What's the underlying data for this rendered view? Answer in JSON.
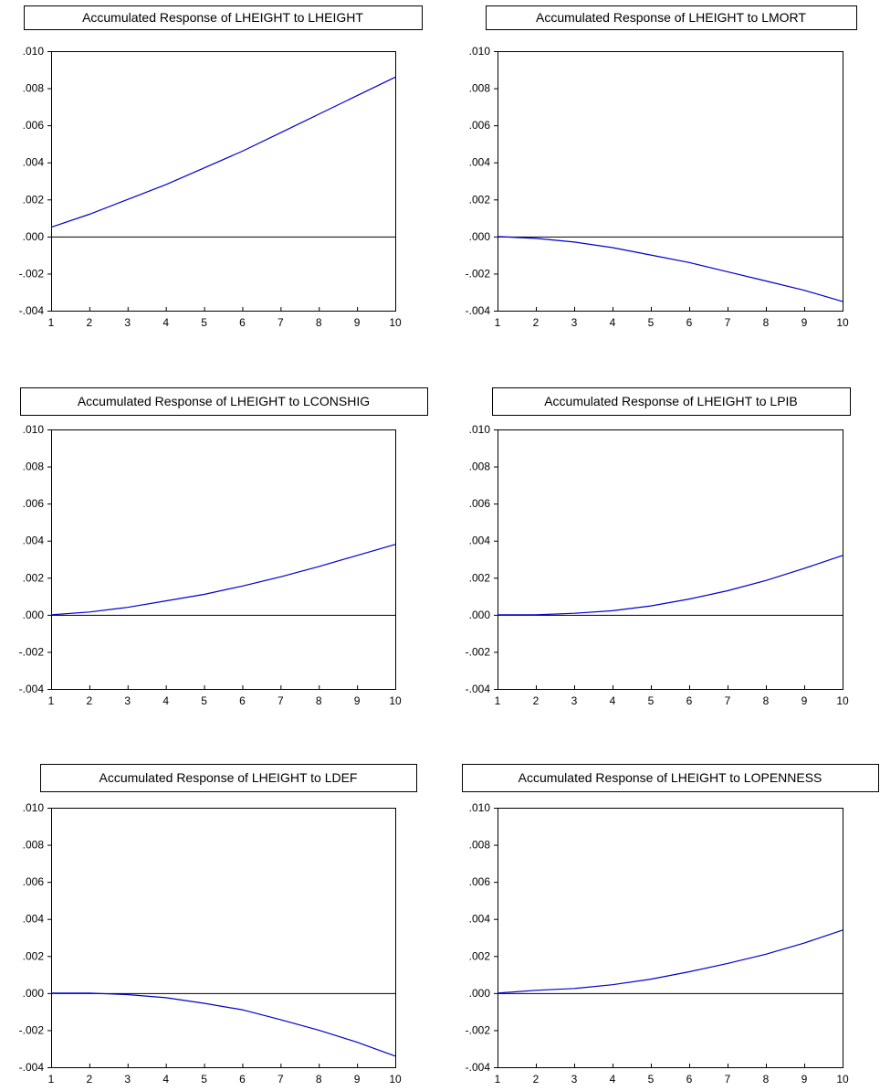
{
  "chart_data": [
    {
      "type": "line",
      "title": "Accumulated Response of LHEIGHT to LHEIGHT",
      "x": [
        1,
        2,
        3,
        4,
        5,
        6,
        7,
        8,
        9,
        10
      ],
      "series": [
        {
          "values": [
            0.0005,
            0.0012,
            0.002,
            0.0028,
            0.0037,
            0.0046,
            0.0056,
            0.0066,
            0.0076,
            0.0086
          ]
        }
      ],
      "xlim": [
        1,
        10
      ],
      "ylim": [
        -0.004,
        0.01
      ],
      "yticks": [
        ".010",
        ".008",
        ".006",
        ".004",
        ".002",
        ".000",
        "-.002",
        "-.004"
      ],
      "xticks": [
        "1",
        "2",
        "3",
        "4",
        "5",
        "6",
        "7",
        "8",
        "9",
        "10"
      ],
      "zero_line": true,
      "grid": false,
      "series_color": "#0000CC"
    },
    {
      "type": "line",
      "title": "Accumulated Response of LHEIGHT to LMORT",
      "x": [
        1,
        2,
        3,
        4,
        5,
        6,
        7,
        8,
        9,
        10
      ],
      "series": [
        {
          "values": [
            0.0,
            -0.0001,
            -0.0003,
            -0.0006,
            -0.001,
            -0.0014,
            -0.0019,
            -0.0024,
            -0.0029,
            -0.0035
          ]
        }
      ],
      "xlim": [
        1,
        10
      ],
      "ylim": [
        -0.004,
        0.01
      ],
      "yticks": [
        ".010",
        ".008",
        ".006",
        ".004",
        ".002",
        ".000",
        "-.002",
        "-.004"
      ],
      "xticks": [
        "1",
        "2",
        "3",
        "4",
        "5",
        "6",
        "7",
        "8",
        "9",
        "10"
      ],
      "zero_line": true,
      "grid": false,
      "series_color": "#0000CC"
    },
    {
      "type": "line",
      "title": "Accumulated Response of LHEIGHT to LCONSHIG",
      "x": [
        1,
        2,
        3,
        4,
        5,
        6,
        7,
        8,
        9,
        10
      ],
      "series": [
        {
          "values": [
            0.0,
            0.00015,
            0.0004,
            0.00075,
            0.0011,
            0.00155,
            0.00205,
            0.0026,
            0.0032,
            0.0038
          ]
        }
      ],
      "xlim": [
        1,
        10
      ],
      "ylim": [
        -0.004,
        0.01
      ],
      "yticks": [
        ".010",
        ".008",
        ".006",
        ".004",
        ".002",
        ".000",
        "-.002",
        "-.004"
      ],
      "xticks": [
        "1",
        "2",
        "3",
        "4",
        "5",
        "6",
        "7",
        "8",
        "9",
        "10"
      ],
      "zero_line": true,
      "grid": false,
      "series_color": "#0000CC"
    },
    {
      "type": "line",
      "title": "Accumulated Response of LHEIGHT to LPIB",
      "x": [
        1,
        2,
        3,
        4,
        5,
        6,
        7,
        8,
        9,
        10
      ],
      "series": [
        {
          "values": [
            0.0,
            0.0,
            8e-05,
            0.00022,
            0.00048,
            0.00085,
            0.0013,
            0.00185,
            0.0025,
            0.0032
          ]
        }
      ],
      "xlim": [
        1,
        10
      ],
      "ylim": [
        -0.004,
        0.01
      ],
      "yticks": [
        ".010",
        ".008",
        ".006",
        ".004",
        ".002",
        ".000",
        "-.002",
        "-.004"
      ],
      "xticks": [
        "1",
        "2",
        "3",
        "4",
        "5",
        "6",
        "7",
        "8",
        "9",
        "10"
      ],
      "zero_line": true,
      "grid": false,
      "series_color": "#0000CC"
    },
    {
      "type": "line",
      "title": "Accumulated Response of LHEIGHT to LDEF",
      "x": [
        1,
        2,
        3,
        4,
        5,
        6,
        7,
        8,
        9,
        10
      ],
      "series": [
        {
          "values": [
            0.0,
            0.0,
            -8e-05,
            -0.00025,
            -0.00055,
            -0.0009,
            -0.00143,
            -0.002,
            -0.00265,
            -0.0034
          ]
        }
      ],
      "xlim": [
        1,
        10
      ],
      "ylim": [
        -0.004,
        0.01
      ],
      "yticks": [
        ".010",
        ".008",
        ".006",
        ".004",
        ".002",
        ".000",
        "-.002",
        "-.004"
      ],
      "xticks": [
        "1",
        "2",
        "3",
        "4",
        "5",
        "6",
        "7",
        "8",
        "9",
        "10"
      ],
      "zero_line": true,
      "grid": false,
      "series_color": "#0000CC"
    },
    {
      "type": "line",
      "title": "Accumulated Response of LHEIGHT to LOPENNESS",
      "x": [
        1,
        2,
        3,
        4,
        5,
        6,
        7,
        8,
        9,
        10
      ],
      "series": [
        {
          "values": [
            0.0,
            0.00015,
            0.00025,
            0.00045,
            0.00075,
            0.00115,
            0.0016,
            0.0021,
            0.0027,
            0.0034
          ]
        }
      ],
      "xlim": [
        1,
        10
      ],
      "ylim": [
        -0.004,
        0.01
      ],
      "yticks": [
        ".010",
        ".008",
        ".006",
        ".004",
        ".002",
        ".000",
        "-.002",
        "-.004"
      ],
      "xticks": [
        "1",
        "2",
        "3",
        "4",
        "5",
        "6",
        "7",
        "8",
        "9",
        "10"
      ],
      "zero_line": true,
      "grid": false,
      "series_color": "#0000CC"
    }
  ]
}
